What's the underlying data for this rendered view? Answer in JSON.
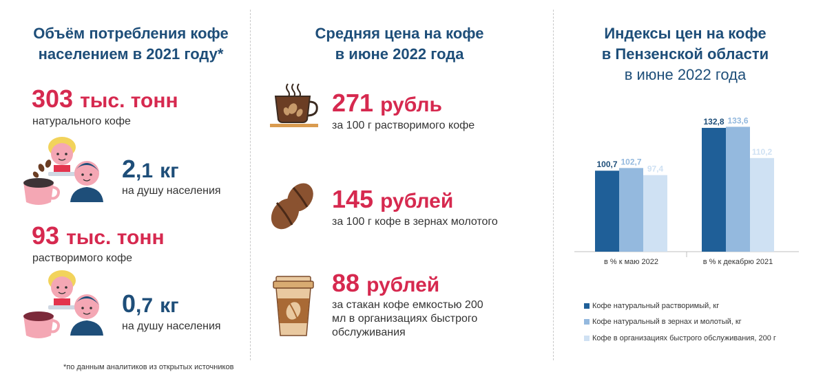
{
  "left": {
    "heading_line1": "Объём потребления кофе",
    "heading_line2": "населением в 2021 году*",
    "stat1_value": "303",
    "stat1_unit": "тыс. тонн",
    "stat1_caption": "натурального кофе",
    "percap1_int": "2",
    "percap1_dec": ",1",
    "percap1_unit": "кг",
    "percap1_caption": "на душу населения",
    "stat2_value": "93",
    "stat2_unit": "тыс. тонн",
    "stat2_caption": "растворимого кофе",
    "percap2_int": "0",
    "percap2_dec": ",7",
    "percap2_unit": "кг",
    "percap2_caption": "на душу населения",
    "footnote": "*по данным аналитиков из открытых источников"
  },
  "middle": {
    "heading_line1": "Средняя цена на кофе",
    "heading_line2": "в июне 2022 года",
    "price1_value": "271",
    "price1_unit": "рубль",
    "price1_caption": "за 100 г растворимого кофе",
    "price2_value": "145",
    "price2_unit": "рублей",
    "price2_caption": "за 100 г кофе в зернах молотого",
    "price3_value": "88",
    "price3_unit": "рублей",
    "price3_caption_line1": "за стакан кофе емкостью 200",
    "price3_caption_line2": "мл в организациях быстрого",
    "price3_caption_line3": "обслуживания"
  },
  "right": {
    "heading_line1": "Индексы цен на кофе",
    "heading_line2": "в Пензенской области",
    "heading_line3": "в июне 2022 года"
  },
  "colors": {
    "series1": "#1f5f98",
    "series2": "#94b9de",
    "series3": "#cfe1f3",
    "red": "#d6294f",
    "navy": "#1e4e79"
  },
  "chart_data": {
    "type": "bar",
    "categories": [
      "в % к маю 2022",
      "в % к декабрю 2021"
    ],
    "series": [
      {
        "name": "Кофе натуральный растворимый, кг",
        "values": [
          100.7,
          132.8
        ],
        "labels": [
          "100,7",
          "132,8"
        ]
      },
      {
        "name": "Кофе натуральный в зернах и молотый, кг",
        "values": [
          102.7,
          133.6
        ],
        "labels": [
          "102,7",
          "133,6"
        ]
      },
      {
        "name": "Кофе в организациях быстрого обслуживания, 200 г",
        "values": [
          97.4,
          110.2
        ],
        "labels": [
          "97,4",
          "110,2"
        ]
      }
    ],
    "ylim": [
      40,
      140
    ],
    "grid": false,
    "legend": "bottom"
  }
}
